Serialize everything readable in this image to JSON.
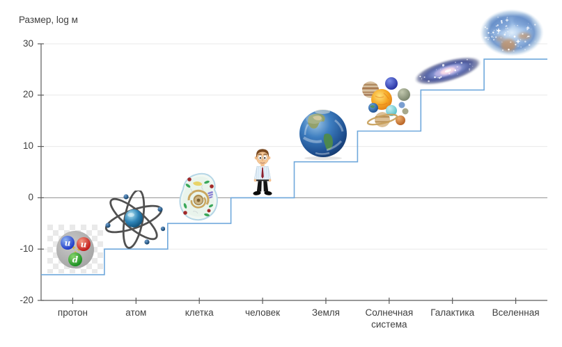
{
  "chart_data": {
    "type": "line",
    "line_style": "step-after",
    "title": "Размер, log м",
    "ylabel": "Размер, log м",
    "xlabel": "",
    "categories": [
      "протон",
      "атом",
      "клетка",
      "человек",
      "Земля",
      "Солнечная система",
      "Галактика",
      "Вселенная"
    ],
    "values": [
      -15,
      -10,
      -5,
      0,
      7,
      13,
      21,
      27
    ],
    "ylim": [
      -20,
      30
    ],
    "yticks": [
      30,
      20,
      10,
      0,
      -10,
      -20
    ],
    "grid": true,
    "legend": false,
    "line_color": "#6fa8dc",
    "icon_names": [
      "proton-image",
      "atom-image",
      "cell-image",
      "human-image",
      "earth-image",
      "solar-system-image",
      "galaxy-image",
      "universe-image"
    ]
  },
  "colors": {
    "step_line": "#6fa8dc",
    "gridline": "#e8e8e8",
    "zero_gridline": "#8f8f8f",
    "axis": "#5a5a5a",
    "text": "#3f3f3f"
  }
}
